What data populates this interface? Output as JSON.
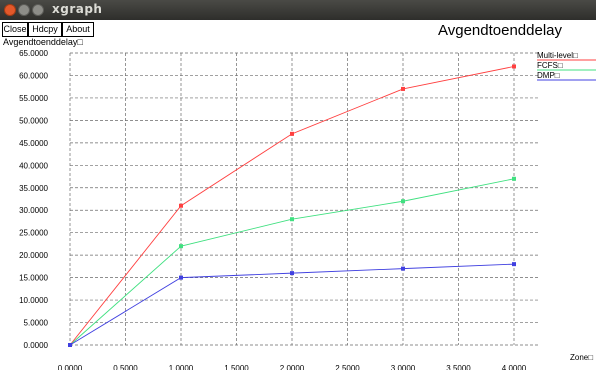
{
  "window": {
    "title": "xgraph"
  },
  "toolbar": {
    "close_label": "Close",
    "hdcpy_label": "Hdcpy",
    "about_label": "About"
  },
  "chart_data": {
    "type": "line",
    "title": "Avgendtoenddelay",
    "ylabel": "Avgendtoenddelay□",
    "xlabel": "Zone□",
    "xlim": [
      0,
      4
    ],
    "ylim": [
      0,
      65
    ],
    "x_ticks": [
      "0.0000",
      "0.5000",
      "1.0000",
      "1.5000",
      "2.0000",
      "2.5000",
      "3.0000",
      "3.5000",
      "4.0000"
    ],
    "y_ticks": [
      "0.0000",
      "5.0000",
      "10.0000",
      "15.0000",
      "20.0000",
      "25.0000",
      "30.0000",
      "35.0000",
      "40.0000",
      "45.0000",
      "50.0000",
      "55.0000",
      "60.0000",
      "65.0000"
    ],
    "grid": true,
    "legend_position": "top-right",
    "series": [
      {
        "name": "Multi-level□",
        "color": "#ff4040",
        "x": [
          0,
          1,
          2,
          3,
          4
        ],
        "y": [
          0,
          31,
          47,
          57,
          62
        ]
      },
      {
        "name": "FCFS□",
        "color": "#40e080",
        "x": [
          0,
          1,
          2,
          3,
          4
        ],
        "y": [
          0,
          22,
          28,
          32,
          37
        ]
      },
      {
        "name": "DMP□",
        "color": "#4040e0",
        "x": [
          0,
          1,
          2,
          3,
          4
        ],
        "y": [
          0,
          15,
          16,
          17,
          18
        ]
      }
    ]
  }
}
